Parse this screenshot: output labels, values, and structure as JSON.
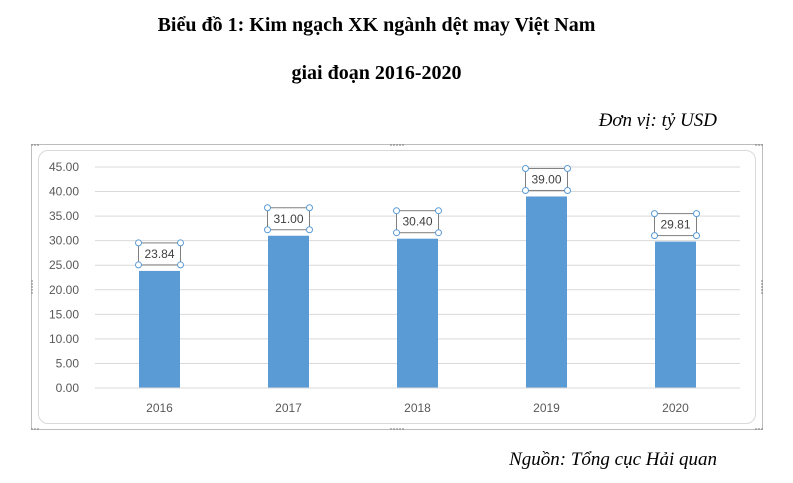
{
  "heading": {
    "line1": "Biểu đồ 1: Kim ngạch XK ngành dệt may Việt Nam",
    "line2": "giai đoạn 2016-2020",
    "unit": "Đơn vị: tỷ USD",
    "source": "Nguồn: Tổng cục Hải quan"
  },
  "chart_data": {
    "type": "bar",
    "categories": [
      "2016",
      "2017",
      "2018",
      "2019",
      "2020"
    ],
    "values": [
      23.84,
      31.0,
      30.4,
      39.0,
      29.81
    ],
    "data_labels": [
      "23.84",
      "31.00",
      "30.40",
      "39.00",
      "29.81"
    ],
    "y_ticks": [
      "0.00",
      "5.00",
      "10.00",
      "15.00",
      "20.00",
      "25.00",
      "30.00",
      "35.00",
      "40.00",
      "45.00"
    ],
    "ylim": [
      0,
      45
    ],
    "grid": true,
    "bar_color": "#5b9bd5",
    "title": "",
    "xlabel": "",
    "ylabel": ""
  }
}
